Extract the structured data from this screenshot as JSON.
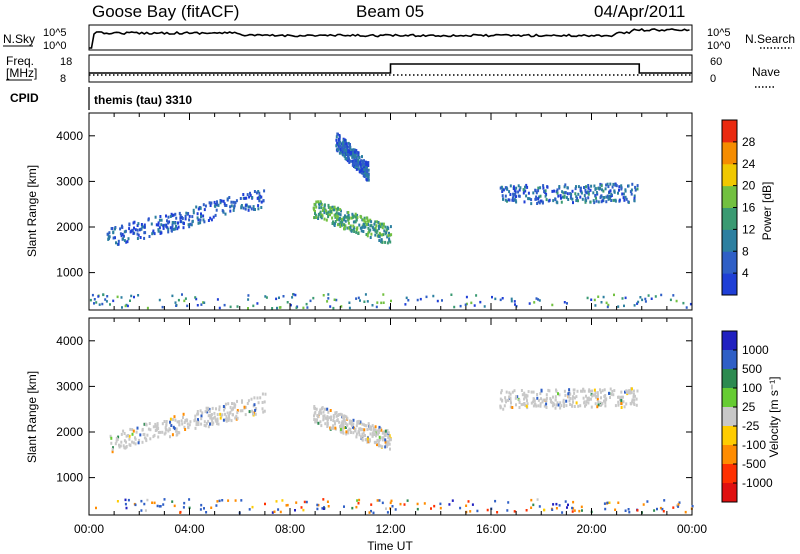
{
  "header": {
    "station": "Goose Bay (fitACF)",
    "beam": "Beam 05",
    "date": "04/Apr/2011"
  },
  "status_panel": {
    "left_top_label": "N.Sky",
    "left_top_ticks": [
      "10^5",
      "10^0"
    ],
    "right_top_label": "N.Search",
    "right_top_ticks": [
      "10^5",
      "10^0"
    ],
    "left_mid_label_1": "Freq.",
    "left_mid_label_2": "[MHz]",
    "left_mid_ticks": [
      "18",
      "8"
    ],
    "right_mid_label": "Nave",
    "right_mid_ticks": [
      "60",
      "0"
    ],
    "cpid_label": "CPID",
    "cpid_value": "themis (tau) 3310"
  },
  "colors": {
    "power_scale": [
      "#1f3fd6",
      "#2f5fc6",
      "#2c7fa0",
      "#3a9a72",
      "#72c040",
      "#f0c800",
      "#f58c00",
      "#ea2a10"
    ],
    "velocity_scale": [
      "#2020c0",
      "#2f5fc6",
      "#2c8a50",
      "#66cc33",
      "#c8c8c8",
      "#ffcc00",
      "#ff8c00",
      "#ff3000",
      "#e01010"
    ],
    "ground_scatter": "#c8c8c8"
  },
  "chart_data": [
    {
      "type": "heatmap",
      "panel": "power",
      "xlabel": "",
      "ylabel": "Slant Range [km]",
      "xlim": [
        "00:00",
        "24:00"
      ],
      "ylim": [
        180,
        4500
      ],
      "yticks": [
        1000,
        2000,
        3000,
        4000
      ],
      "xtick_labels": [
        "00:00",
        "04:00",
        "08:00",
        "12:00",
        "16:00",
        "20:00",
        "00:00"
      ],
      "colorbar": {
        "label": "Power [dB]",
        "range": [
          0,
          32
        ],
        "ticks": [
          4,
          8,
          12,
          16,
          20,
          24,
          28
        ]
      },
      "features": [
        {
          "t_start_h": 0.7,
          "t_end_h": 7.0,
          "range_start_km": 1750,
          "range_end_km": 2650,
          "power_db": 6
        },
        {
          "t_start_h": 8.9,
          "t_end_h": 12.0,
          "range_start_km": 2400,
          "range_end_km": 1800,
          "power_db": 14
        },
        {
          "t_start_h": 9.8,
          "t_end_h": 11.1,
          "range_start_km": 3900,
          "range_end_km": 3200,
          "power_db": 6
        },
        {
          "t_start_h": 16.3,
          "t_end_h": 21.8,
          "range_start_km": 2700,
          "range_end_km": 2750,
          "power_db": 7
        }
      ]
    },
    {
      "type": "heatmap",
      "panel": "velocity",
      "xlabel": "Time UT",
      "ylabel": "Slant Range [km]",
      "xlim": [
        "00:00",
        "24:00"
      ],
      "ylim": [
        180,
        4500
      ],
      "yticks": [
        1000,
        2000,
        3000,
        4000
      ],
      "xtick_labels": [
        "00:00",
        "04:00",
        "08:00",
        "12:00",
        "16:00",
        "20:00",
        "00:00"
      ],
      "colorbar": {
        "label": "Velocity [m s⁻¹]",
        "tick_labels": [
          "1000",
          "500",
          "100",
          "25",
          "-25",
          "-100",
          "-500",
          "-1000"
        ]
      },
      "features": [
        {
          "t_start_h": 0.7,
          "t_end_h": 7.0,
          "range_start_km": 1750,
          "range_end_km": 2650,
          "velocity_ms": 0,
          "ground_scatter": true
        },
        {
          "t_start_h": 8.9,
          "t_end_h": 12.0,
          "range_start_km": 2400,
          "range_end_km": 1800,
          "velocity_ms": 0,
          "ground_scatter": true
        },
        {
          "t_start_h": 16.3,
          "t_end_h": 21.8,
          "range_start_km": 2700,
          "range_end_km": 2750,
          "velocity_ms": 0,
          "ground_scatter": true
        }
      ]
    }
  ]
}
